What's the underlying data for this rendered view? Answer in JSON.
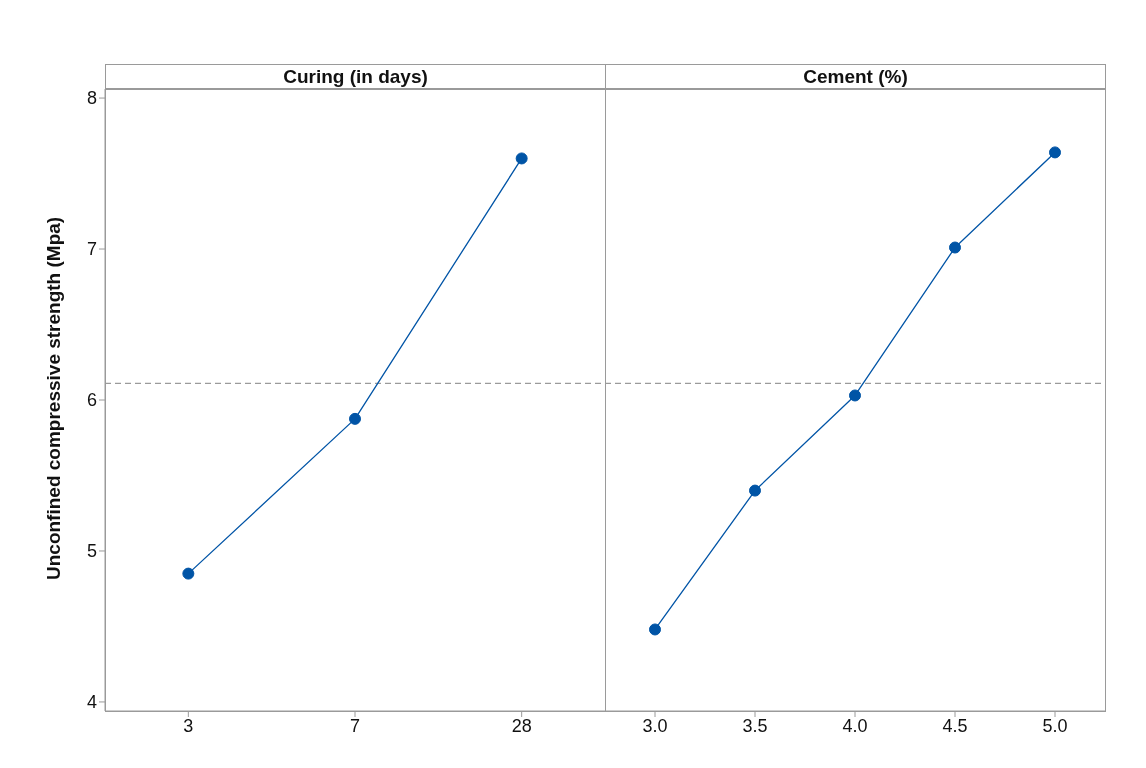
{
  "chart_data": [
    {
      "type": "line",
      "title": "Curing (in days)",
      "ylabel": "Unconfined compressive strength (Mpa)",
      "categories": [
        "3",
        "7",
        "28"
      ],
      "series": [
        {
          "color": "#0054a6",
          "values": [
            4.85,
            5.875,
            7.6
          ]
        }
      ],
      "ylim": [
        3.94,
        8.06
      ],
      "yticks": [
        4,
        5,
        6,
        7,
        8
      ],
      "marker": "circle",
      "line_style": "solid",
      "ref_lines": [
        {
          "axis": "y",
          "value": 6.11,
          "color": "#9a9a9a",
          "line_style": "dashed"
        }
      ]
    },
    {
      "type": "line",
      "title": "Cement (%)",
      "categories": [
        "3.0",
        "3.5",
        "4.0",
        "4.5",
        "5.0"
      ],
      "series": [
        {
          "color": "#0054a6",
          "values": [
            4.48,
            5.4,
            6.03,
            7.01,
            7.64
          ]
        }
      ],
      "ylim": [
        3.94,
        8.06
      ],
      "yticks": [
        4,
        5,
        6,
        7,
        8
      ],
      "tick_labels": "x",
      "marker": "circle",
      "line_style": "solid",
      "ref_lines": [
        {
          "axis": "y",
          "value": 6.11,
          "color": "#9a9a9a",
          "line_style": "dashed"
        }
      ]
    }
  ]
}
